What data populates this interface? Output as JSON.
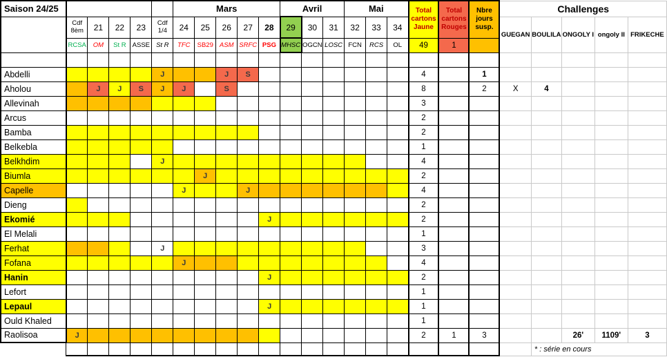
{
  "season": "Saison 24/25",
  "months": [
    {
      "label": "",
      "span": 4
    },
    {
      "label": "",
      "span": 1
    },
    {
      "label": "Mars",
      "span": 5
    },
    {
      "label": "Avril",
      "span": 3
    },
    {
      "label": "Mai",
      "span": 3
    }
  ],
  "columns": [
    {
      "num": "Cdf 8èm",
      "cdf": 1,
      "opp": "RCSA",
      "oc": "green",
      "oi": 0,
      "ob": 0
    },
    {
      "num": "21",
      "opp": "OM",
      "oc": "red",
      "oi": 1
    },
    {
      "num": "22",
      "opp": "St R",
      "oc": "green"
    },
    {
      "num": "23",
      "opp": "ASSE",
      "oc": "black"
    },
    {
      "num": "Cdf 1/4",
      "cdf": 1,
      "opp": "St R",
      "oc": "black",
      "oi": 1
    },
    {
      "num": "24",
      "opp": "TFC",
      "oc": "red",
      "oi": 1
    },
    {
      "num": "25",
      "opp": "SB29",
      "oc": "red"
    },
    {
      "num": "26",
      "opp": "ASM",
      "oc": "red",
      "oi": 1
    },
    {
      "num": "27",
      "opp": "SRFC",
      "oc": "red",
      "oi": 1
    },
    {
      "num": "28",
      "nb": 1,
      "opp": "PSG",
      "oc": "red",
      "ob": 1
    },
    {
      "num": "29",
      "green": 1,
      "opp": "MHSC",
      "oc": "black",
      "oi": 1
    },
    {
      "num": "30",
      "opp": "OGCN",
      "oc": "black"
    },
    {
      "num": "31",
      "opp": "LOSC",
      "oc": "black",
      "oi": 1
    },
    {
      "num": "32",
      "opp": "FCN",
      "oc": "black"
    },
    {
      "num": "33",
      "opp": "RCS",
      "oc": "black",
      "oi": 1
    },
    {
      "num": "34",
      "opp": "OL",
      "oc": "black"
    }
  ],
  "totals": {
    "jaune_label": "Total cartons Jaune",
    "jaune_total": "49",
    "rouges_label": "Total cartons Rouges",
    "rouges_total": "1",
    "susp_label": "Nbre jours susp.",
    "susp_total": ""
  },
  "challenges": {
    "title": "Challenges",
    "names": [
      "GUEGAN",
      "BOULILA",
      "ONGOLY I",
      "ongoly II",
      "FRIKECHE"
    ]
  },
  "players": [
    {
      "name": "Abdelli",
      "bg": "",
      "bold": false,
      "cells": [
        "y",
        "y",
        "y",
        "y",
        "oJ",
        "o",
        "o",
        "rJ",
        "rS",
        "",
        "",
        "",
        "",
        "",
        "",
        ""
      ],
      "tj": "4",
      "tr": "",
      "su": "1",
      "su_bold": true,
      "ch": []
    },
    {
      "name": "Aholou",
      "bg": "",
      "bold": false,
      "cells": [
        "o",
        "rJ",
        "yJ",
        "rS",
        "oJ",
        "rJ",
        "",
        "rS",
        "",
        "",
        "",
        "",
        "",
        "",
        "",
        ""
      ],
      "tj": "8",
      "tr": "",
      "su": "2",
      "su_bold": false,
      "ch": [
        [
          "X",
          0
        ],
        [
          "4",
          1
        ],
        [
          "",
          0
        ],
        [
          "",
          0
        ],
        [
          "",
          0
        ]
      ]
    },
    {
      "name": "Allevinah",
      "bg": "",
      "bold": false,
      "cells": [
        "o",
        "o",
        "o",
        "o",
        "y",
        "y",
        "y",
        "",
        "",
        "",
        "",
        "",
        "",
        "",
        "",
        ""
      ],
      "tj": "3",
      "tr": "",
      "su": "",
      "su_bold": false,
      "ch": []
    },
    {
      "name": "Arcus",
      "bg": "",
      "bold": false,
      "cells": [
        "",
        "",
        "",
        "",
        "",
        "",
        "",
        "",
        "",
        "",
        "",
        "",
        "",
        "",
        "",
        ""
      ],
      "tj": "2",
      "tr": "",
      "su": "",
      "su_bold": false,
      "ch": []
    },
    {
      "name": "Bamba",
      "bg": "",
      "bold": false,
      "cells": [
        "y",
        "y",
        "y",
        "y",
        "y",
        "y",
        "y",
        "y",
        "y",
        "",
        "",
        "",
        "",
        "",
        "",
        ""
      ],
      "tj": "2",
      "tr": "",
      "su": "",
      "su_bold": false,
      "ch": []
    },
    {
      "name": "Belkebla",
      "bg": "",
      "bold": false,
      "cells": [
        "y",
        "y",
        "y",
        "y",
        "y",
        "",
        "",
        "",
        "",
        "",
        "",
        "",
        "",
        "",
        "",
        ""
      ],
      "tj": "1",
      "tr": "",
      "su": "",
      "su_bold": false,
      "ch": []
    },
    {
      "name": "Belkhdim",
      "bg": "y",
      "bold": false,
      "cells": [
        "y",
        "y",
        "y",
        "",
        "yJ",
        "y",
        "y",
        "y",
        "y",
        "y",
        "y",
        "y",
        "y",
        "y",
        "",
        ""
      ],
      "tj": "4",
      "tr": "",
      "su": "",
      "su_bold": false,
      "ch": []
    },
    {
      "name": "Biumla",
      "bg": "y",
      "bold": false,
      "cells": [
        "y",
        "y",
        "y",
        "y",
        "y",
        "y",
        "oJ",
        "y",
        "y",
        "y",
        "y",
        "y",
        "y",
        "y",
        "y",
        "y"
      ],
      "tj": "2",
      "tr": "",
      "su": "",
      "su_bold": false,
      "ch": []
    },
    {
      "name": "Capelle",
      "bg": "o",
      "bold": false,
      "cells": [
        "",
        "",
        "",
        "",
        "",
        "yJ",
        "y",
        "y",
        "oJ",
        "o",
        "o",
        "o",
        "o",
        "o",
        "o",
        "y"
      ],
      "tj": "4",
      "tr": "",
      "su": "",
      "su_bold": false,
      "ch": []
    },
    {
      "name": "Dieng",
      "bg": "",
      "bold": false,
      "cells": [
        "y",
        "",
        "",
        "",
        "",
        "",
        "",
        "",
        "",
        "",
        "",
        "",
        "",
        "",
        "",
        ""
      ],
      "tj": "2",
      "tr": "",
      "su": "",
      "su_bold": false,
      "ch": []
    },
    {
      "name": "Ekomié",
      "bg": "y",
      "bold": true,
      "cells": [
        "y",
        "y",
        "y",
        "",
        "",
        "",
        "",
        "",
        "",
        "yJ",
        "y",
        "y",
        "y",
        "y",
        "y",
        "y"
      ],
      "tj": "2",
      "tr": "",
      "su": "",
      "su_bold": false,
      "ch": []
    },
    {
      "name": "El Melali",
      "bg": "",
      "bold": false,
      "cells": [
        "",
        "",
        "",
        "",
        "",
        "",
        "",
        "",
        "",
        "",
        "",
        "",
        "",
        "",
        "",
        ""
      ],
      "tj": "1",
      "tr": "",
      "su": "",
      "su_bold": false,
      "ch": []
    },
    {
      "name": "Ferhat",
      "bg": "y",
      "bold": false,
      "cells": [
        "o",
        "o",
        "y",
        "",
        "wJ",
        "y",
        "y",
        "y",
        "y",
        "y",
        "y",
        "y",
        "y",
        "y",
        "",
        ""
      ],
      "tj": "3",
      "tr": "",
      "su": "",
      "su_bold": false,
      "ch": []
    },
    {
      "name": "Fofana",
      "bg": "y",
      "bold": false,
      "cells": [
        "y",
        "y",
        "y",
        "y",
        "y",
        "oJ",
        "o",
        "o",
        "y",
        "y",
        "y",
        "y",
        "y",
        "y",
        "y",
        ""
      ],
      "tj": "4",
      "tr": "",
      "su": "",
      "su_bold": false,
      "ch": []
    },
    {
      "name": "Hanin",
      "bg": "y",
      "bold": true,
      "cells": [
        "",
        "",
        "",
        "",
        "",
        "",
        "",
        "",
        "",
        "yJ",
        "y",
        "y",
        "y",
        "y",
        "y",
        "y"
      ],
      "tj": "2",
      "tr": "",
      "su": "",
      "su_bold": false,
      "ch": []
    },
    {
      "name": "Lefort",
      "bg": "",
      "bold": false,
      "cells": [
        "",
        "",
        "",
        "",
        "",
        "",
        "",
        "",
        "",
        "",
        "",
        "",
        "",
        "",
        "",
        ""
      ],
      "tj": "1",
      "tr": "",
      "su": "",
      "su_bold": false,
      "ch": []
    },
    {
      "name": "Lepaul",
      "bg": "y",
      "bold": true,
      "cells": [
        "",
        "",
        "",
        "",
        "",
        "",
        "",
        "",
        "",
        "yJ",
        "y",
        "y",
        "y",
        "y",
        "y",
        "y"
      ],
      "tj": "1",
      "tr": "",
      "su": "",
      "su_bold": false,
      "ch": []
    },
    {
      "name": "Ould Khaled",
      "bg": "",
      "bold": false,
      "cells": [
        "",
        "",
        "",
        "",
        "",
        "",
        "",
        "",
        "",
        "",
        "",
        "",
        "",
        "",
        "",
        ""
      ],
      "tj": "1",
      "tr": "",
      "su": "",
      "su_bold": false,
      "ch": []
    },
    {
      "name": "Raolisoa",
      "bg": "",
      "bold": false,
      "cells": [
        "oJ",
        "o",
        "o",
        "o",
        "o",
        "o",
        "o",
        "o",
        "o",
        "y",
        "",
        "",
        "",
        "",
        "",
        ""
      ],
      "tj": "2",
      "tr": "1",
      "su": "3",
      "su_bold": false,
      "ch": [
        [
          "",
          0
        ],
        [
          "",
          0
        ],
        [
          "26'",
          1
        ],
        [
          "1109'",
          1
        ],
        [
          "3",
          1
        ]
      ]
    }
  ],
  "footnote": "* : série en cours",
  "colors": {
    "yellow": "#FFFF00",
    "orange": "#FFC000",
    "salmon": "#F4694C",
    "green_cell": "#92D050",
    "green_text": "#00B050",
    "red_text": "#FF0000",
    "dark_red_text": "#C00000",
    "grid_gray": "#C9C9C9",
    "letter": "#3A3A3A"
  }
}
